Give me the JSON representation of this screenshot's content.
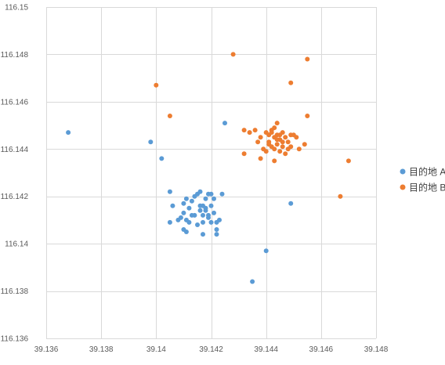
{
  "chart_data": {
    "type": "scatter",
    "xlim": [
      39.136,
      39.148
    ],
    "ylim": [
      116.136,
      116.15
    ],
    "x_ticks": [
      "39.136",
      "39.138",
      "39.14",
      "39.142",
      "39.144",
      "39.146",
      "39.148"
    ],
    "y_ticks": [
      "116.136",
      "116.138",
      "116.14",
      "116.142",
      "116.144",
      "116.146",
      "116.148",
      "116.15"
    ],
    "grid": true,
    "legend_position": "right",
    "series": [
      {
        "name": "目的地 A",
        "color": "#5B9BD5",
        "points": [
          [
            39.1368,
            116.1447
          ],
          [
            39.1398,
            116.1443
          ],
          [
            39.1402,
            116.1436
          ],
          [
            39.1425,
            116.1451
          ],
          [
            39.1405,
            116.1422
          ],
          [
            39.1406,
            116.1416
          ],
          [
            39.1405,
            116.1409
          ],
          [
            39.1408,
            116.141
          ],
          [
            39.141,
            116.1413
          ],
          [
            39.141,
            116.1417
          ],
          [
            39.1411,
            116.141
          ],
          [
            39.1412,
            116.1415
          ],
          [
            39.1413,
            116.1418
          ],
          [
            39.1414,
            116.142
          ],
          [
            39.1414,
            116.1412
          ],
          [
            39.1415,
            116.1408
          ],
          [
            39.1416,
            116.1414
          ],
          [
            39.1416,
            116.1416
          ],
          [
            39.1417,
            116.1412
          ],
          [
            39.1417,
            116.1409
          ],
          [
            39.1417,
            116.1404
          ],
          [
            39.1418,
            116.1419
          ],
          [
            39.1418,
            116.1414
          ],
          [
            39.1419,
            116.1421
          ],
          [
            39.1419,
            116.1411
          ],
          [
            39.142,
            116.1416
          ],
          [
            39.142,
            116.1409
          ],
          [
            39.1421,
            116.1413
          ],
          [
            39.1421,
            116.1419
          ],
          [
            39.1422,
            116.1406
          ],
          [
            39.1422,
            116.1404
          ],
          [
            39.1423,
            116.141
          ],
          [
            39.142,
            116.1421
          ],
          [
            39.1424,
            116.1421
          ],
          [
            39.1411,
            116.1405
          ],
          [
            39.1409,
            116.1411
          ],
          [
            39.141,
            116.1406
          ],
          [
            39.1419,
            116.1412
          ],
          [
            39.1415,
            116.1421
          ],
          [
            39.1413,
            116.1412
          ],
          [
            39.1412,
            116.1409
          ],
          [
            39.1417,
            116.1416
          ],
          [
            39.1411,
            116.1419
          ],
          [
            39.1416,
            116.1422
          ],
          [
            39.1422,
            116.1409
          ],
          [
            39.1418,
            116.1415
          ],
          [
            39.144,
            116.1397
          ],
          [
            39.1435,
            116.1384
          ],
          [
            39.1449,
            116.1417
          ]
        ]
      },
      {
        "name": "目的地 B",
        "color": "#ED7D31",
        "points": [
          [
            39.1428,
            116.148
          ],
          [
            39.1455,
            116.1478
          ],
          [
            39.14,
            116.1467
          ],
          [
            39.1449,
            116.1468
          ],
          [
            39.1405,
            116.1454
          ],
          [
            39.1455,
            116.1454
          ],
          [
            39.1436,
            116.1448
          ],
          [
            39.1432,
            116.1448
          ],
          [
            39.1438,
            116.1445
          ],
          [
            39.144,
            116.1447
          ],
          [
            39.1441,
            116.1446
          ],
          [
            39.1442,
            116.1448
          ],
          [
            39.1443,
            116.1449
          ],
          [
            39.1444,
            116.1451
          ],
          [
            39.1444,
            116.1446
          ],
          [
            39.1445,
            116.1444
          ],
          [
            39.1446,
            116.1447
          ],
          [
            39.1447,
            116.1445
          ],
          [
            39.1448,
            116.1443
          ],
          [
            39.1449,
            116.1441
          ],
          [
            39.145,
            116.1446
          ],
          [
            39.1451,
            116.1445
          ],
          [
            39.1452,
            116.144
          ],
          [
            39.1454,
            116.1442
          ],
          [
            39.1441,
            116.1443
          ],
          [
            39.1442,
            116.1441
          ],
          [
            39.1443,
            116.144
          ],
          [
            39.1444,
            116.1442
          ],
          [
            39.1445,
            116.1439
          ],
          [
            39.1446,
            116.1441
          ],
          [
            39.1447,
            116.1438
          ],
          [
            39.1448,
            116.144
          ],
          [
            39.144,
            116.1439
          ],
          [
            39.1439,
            116.144
          ],
          [
            39.1438,
            116.1436
          ],
          [
            39.1437,
            116.1443
          ],
          [
            39.1443,
            116.1445
          ],
          [
            39.1445,
            116.1446
          ],
          [
            39.1446,
            116.1443
          ],
          [
            39.1443,
            116.1435
          ],
          [
            39.1432,
            116.1438
          ],
          [
            39.1434,
            116.1447
          ],
          [
            39.1441,
            116.1442
          ],
          [
            39.1444,
            116.1444
          ],
          [
            39.1442,
            116.1447
          ],
          [
            39.1449,
            116.1446
          ],
          [
            39.147,
            116.1435
          ],
          [
            39.1467,
            116.142
          ]
        ]
      }
    ]
  }
}
